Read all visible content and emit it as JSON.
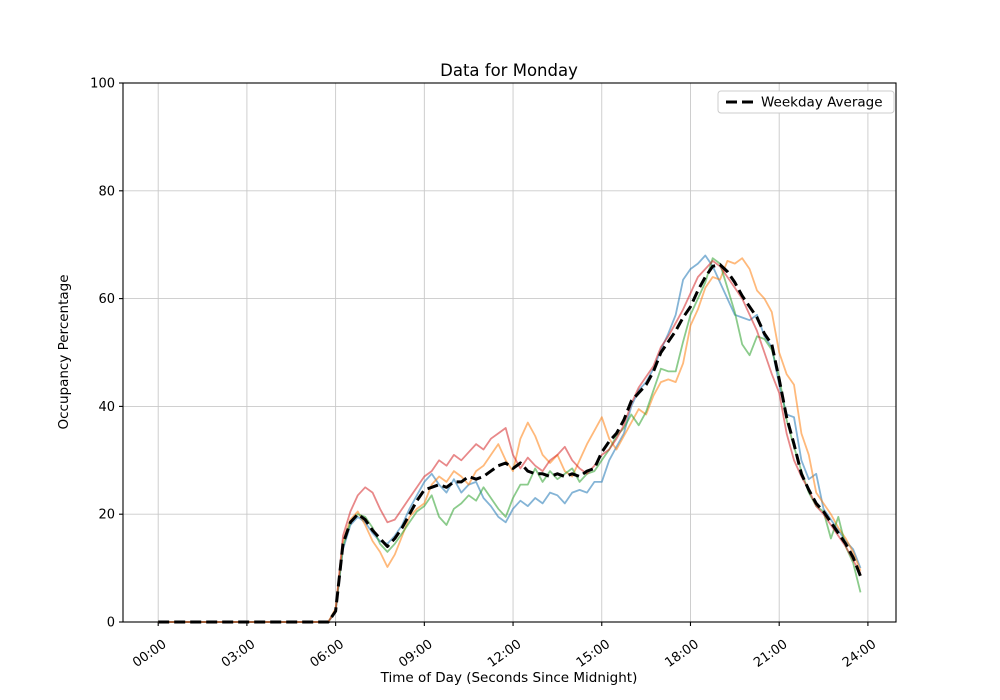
{
  "chart_data": {
    "type": "line",
    "title": "Data for Monday",
    "xlabel": "Time of Day (Seconds Since Midnight)",
    "ylabel": "Occupancy Percentage",
    "grid": true,
    "legend": {
      "position": "upper right",
      "entries": [
        "Weekday Average"
      ]
    },
    "x_axis": {
      "unit": "hours",
      "start": 0,
      "step": 0.25,
      "xlim_hours": [
        -1.19,
        24.95
      ],
      "tick_hours": [
        0,
        3,
        6,
        9,
        12,
        15,
        18,
        21,
        24
      ],
      "tick_labels": [
        "00:00",
        "03:00",
        "06:00",
        "09:00",
        "12:00",
        "15:00",
        "18:00",
        "21:00",
        "24:00"
      ]
    },
    "y_axis": {
      "ylim": [
        0,
        100
      ],
      "ticks": [
        0,
        20,
        40,
        60,
        80,
        100
      ]
    },
    "series": [
      {
        "id": "day-line-1",
        "color": "#1f77b4",
        "opacity": 0.55,
        "line_width": 1.8,
        "dash": null,
        "values": [
          0,
          0,
          0,
          0,
          0,
          0,
          0,
          0,
          0,
          0,
          0,
          0,
          0,
          0,
          0,
          0,
          0,
          0,
          0,
          0,
          0,
          0,
          0,
          0,
          2,
          13.5,
          18,
          19.5,
          18.5,
          16.5,
          15,
          14.5,
          16,
          18,
          21,
          23.5,
          26,
          27.5,
          25.5,
          24,
          26.5,
          24,
          25.5,
          26,
          23,
          21.5,
          19.5,
          18.5,
          21,
          22.5,
          21.5,
          23,
          22,
          24,
          23.5,
          22,
          24,
          24.5,
          24,
          26,
          26,
          30,
          32.5,
          35,
          40,
          43,
          44.5,
          47,
          50.5,
          53.5,
          57,
          63.5,
          65.5,
          66.5,
          68,
          66,
          63,
          60,
          57,
          56.5,
          56,
          57,
          53,
          51,
          44,
          38.5,
          38,
          30,
          26.5,
          27.5,
          21,
          19,
          17,
          15,
          13.5,
          10
        ]
      },
      {
        "id": "day-line-2",
        "color": "#ff7f0e",
        "opacity": 0.55,
        "line_width": 1.8,
        "dash": null,
        "values": [
          0,
          0,
          0,
          0,
          0,
          0,
          0,
          0,
          0,
          0,
          0,
          0,
          0,
          0,
          0,
          0,
          0,
          0,
          0,
          0,
          0,
          0,
          0,
          0,
          2.5,
          15,
          19,
          20.5,
          18,
          15,
          13,
          10.2,
          12.5,
          16,
          19.5,
          21,
          22,
          25.5,
          27,
          26,
          28,
          27,
          25.5,
          28,
          29,
          31,
          33,
          30,
          28,
          34,
          37,
          34.5,
          31,
          29.5,
          31,
          28,
          27,
          30,
          33,
          35.5,
          38,
          34,
          32,
          34.5,
          37,
          39.5,
          38.5,
          42,
          44.5,
          45,
          44.5,
          48,
          55,
          58,
          62,
          64,
          63.5,
          67,
          66.5,
          67.5,
          65.5,
          61.5,
          60,
          57.5,
          50,
          46,
          44,
          35,
          31,
          24,
          22,
          20,
          17.5,
          15.5,
          13,
          9.5
        ]
      },
      {
        "id": "day-line-3",
        "color": "#2ca02c",
        "opacity": 0.55,
        "line_width": 1.8,
        "dash": null,
        "values": [
          0,
          0,
          0,
          0,
          0,
          0,
          0,
          0,
          0,
          0,
          0,
          0,
          0,
          0,
          0,
          0,
          0,
          0,
          0,
          0,
          0,
          0,
          0,
          0,
          2,
          14,
          18.5,
          20,
          19.5,
          17.5,
          14.5,
          13,
          14.5,
          16.5,
          18.5,
          20.5,
          21.5,
          23.5,
          19.5,
          18,
          21,
          22,
          23.5,
          22.5,
          25,
          23,
          21,
          19.5,
          23,
          25.5,
          25.5,
          28.5,
          26,
          28,
          26.5,
          27.5,
          28.5,
          26,
          27.5,
          28,
          30,
          32,
          34.5,
          36,
          38.5,
          36.5,
          39,
          43,
          47,
          46.5,
          46.5,
          52,
          57,
          60,
          63,
          67.5,
          66.5,
          62,
          57.5,
          51.5,
          49.5,
          53,
          52.5,
          50.5,
          45.5,
          37.5,
          32.5,
          28,
          24,
          21.5,
          20.5,
          15.5,
          19.5,
          14,
          11,
          5.5
        ]
      },
      {
        "id": "day-line-4",
        "color": "#d62728",
        "opacity": 0.55,
        "line_width": 1.8,
        "dash": null,
        "values": [
          0,
          0,
          0,
          0,
          0,
          0,
          0,
          0,
          0,
          0,
          0,
          0,
          0,
          0,
          0,
          0,
          0,
          0,
          0,
          0,
          0,
          0,
          0,
          0,
          2,
          16,
          20.5,
          23.5,
          25,
          24,
          21,
          18.5,
          19,
          21,
          23,
          25,
          27,
          28,
          30,
          29,
          31,
          30,
          31.5,
          33,
          32,
          34,
          35,
          36,
          31,
          28.5,
          30.5,
          29,
          28,
          30,
          31,
          32.5,
          30,
          28.5,
          27.5,
          29,
          31,
          32,
          34,
          36.5,
          40.5,
          43.5,
          45.5,
          47.5,
          51,
          53,
          55.5,
          58,
          61,
          64,
          65.5,
          67,
          66,
          64,
          62,
          60,
          57,
          54,
          50,
          46,
          42.5,
          35,
          30,
          27,
          24.5,
          21.5,
          20,
          18,
          16,
          14,
          11.5,
          9
        ]
      },
      {
        "id": "weekday-average",
        "legend_label": "Weekday Average",
        "color": "#000000",
        "opacity": 1,
        "line_width": 3,
        "dash": [
          11,
          5
        ],
        "values": [
          0,
          0,
          0,
          0,
          0,
          0,
          0,
          0,
          0,
          0,
          0,
          0,
          0,
          0,
          0,
          0,
          0,
          0,
          0,
          0,
          0,
          0,
          0,
          0,
          2,
          14.5,
          18.5,
          20,
          19,
          17,
          15.5,
          14,
          15.5,
          17.5,
          20,
          22.5,
          24.5,
          25,
          25.5,
          25,
          26,
          26,
          27,
          26.5,
          27,
          28,
          29,
          29.5,
          28.5,
          29.5,
          28,
          27.5,
          27.5,
          27,
          27.5,
          27,
          27.5,
          27,
          28,
          28.5,
          31.5,
          33.5,
          35,
          37.5,
          41,
          42.5,
          44,
          46.5,
          50,
          52,
          54,
          56.5,
          58.5,
          61.5,
          64,
          66,
          66.3,
          65,
          63,
          60.5,
          58.5,
          56.5,
          53.5,
          51.5,
          45,
          38,
          33,
          27.5,
          24.5,
          22,
          20.5,
          18.5,
          16.5,
          14.5,
          12,
          8.5
        ]
      }
    ]
  }
}
